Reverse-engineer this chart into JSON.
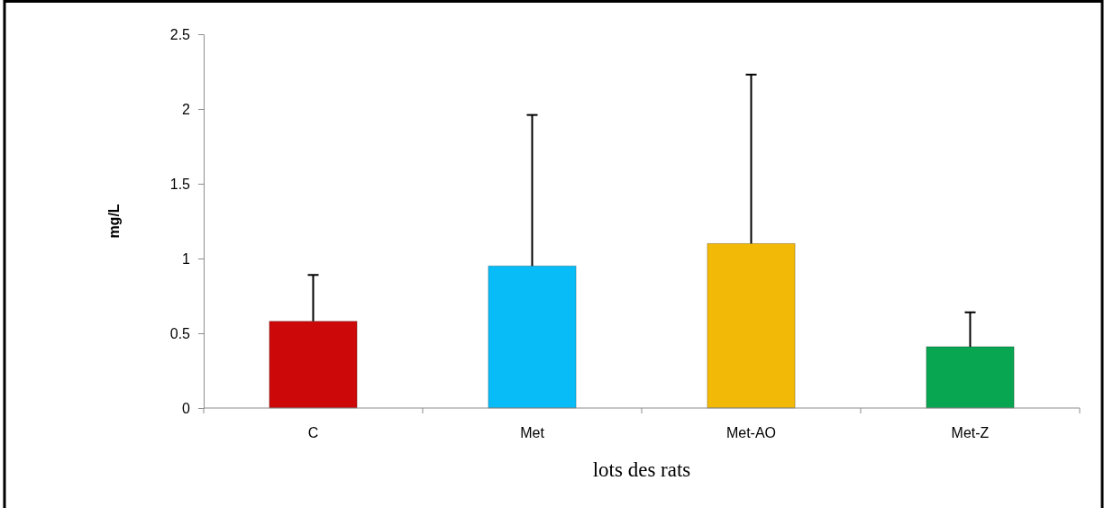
{
  "chart_data": {
    "type": "bar",
    "xlabel": "lots des rats",
    "ylabel": "mg/L",
    "categories": [
      "C",
      "Met",
      "Met-AO",
      "Met-Z"
    ],
    "values": [
      0.58,
      0.95,
      1.1,
      0.41
    ],
    "colors": [
      "#cc0808",
      "#08bcf8",
      "#f2b907",
      "#08a651"
    ],
    "errors": [
      0.31,
      1.01,
      1.13,
      0.23
    ],
    "ylim": [
      0,
      2.5
    ],
    "yticks": [
      0,
      0.5,
      1,
      1.5,
      2,
      2.5
    ],
    "grid": false
  }
}
